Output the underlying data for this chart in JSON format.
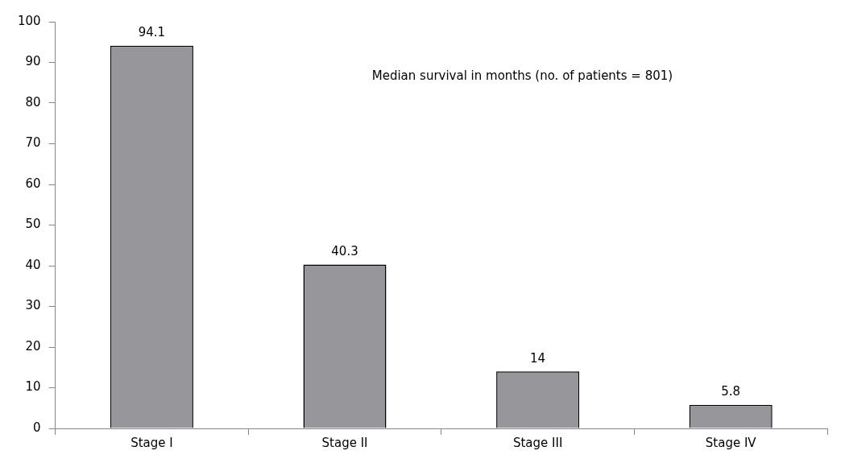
{
  "chart_data": {
    "type": "bar",
    "categories": [
      "Stage I",
      "Stage II",
      "Stage III",
      "Stage IV"
    ],
    "values": [
      94.1,
      40.3,
      14,
      5.8
    ],
    "color": "#97979b",
    "ylim": [
      0,
      100
    ],
    "yticks": [
      0,
      10,
      20,
      30,
      40,
      50,
      60,
      70,
      80,
      90,
      100
    ],
    "grid": false,
    "legend": false,
    "data_labels": true,
    "annotations": [
      "Median survival in months (no. of patients = 801)"
    ]
  }
}
